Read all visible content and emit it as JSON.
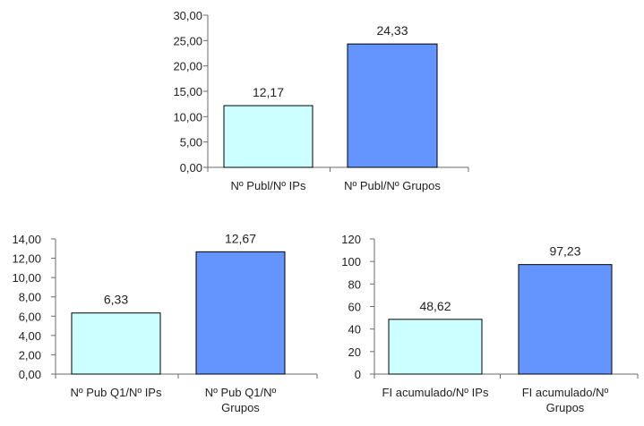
{
  "colors": {
    "series_a": "#ccffff",
    "series_b": "#6495ff"
  },
  "chart_data": [
    {
      "type": "bar",
      "categories": [
        [
          "Nº Publ/Nº IPs"
        ],
        [
          "Nº Publ/Nº Grupos"
        ]
      ],
      "values": [
        12.17,
        24.33
      ],
      "data_labels": [
        "12,17",
        "24,33"
      ],
      "ylim": [
        0,
        30
      ],
      "yticks": [
        0,
        5,
        10,
        15,
        20,
        25,
        30
      ],
      "ytick_labels": [
        "0,00",
        "5,00",
        "10,00",
        "15,00",
        "20,00",
        "25,00",
        "30,00"
      ],
      "grid": false,
      "legend": "none"
    },
    {
      "type": "bar",
      "categories": [
        [
          "Nº Pub Q1/Nº IPs"
        ],
        [
          "Nº Pub Q1/Nº",
          "Grupos"
        ]
      ],
      "values": [
        6.33,
        12.67
      ],
      "data_labels": [
        "6,33",
        "12,67"
      ],
      "ylim": [
        0,
        14
      ],
      "yticks": [
        0,
        2,
        4,
        6,
        8,
        10,
        12,
        14
      ],
      "ytick_labels": [
        "0,00",
        "2,00",
        "4,00",
        "6,00",
        "8,00",
        "10,00",
        "12,00",
        "14,00"
      ],
      "grid": false,
      "legend": "none"
    },
    {
      "type": "bar",
      "categories": [
        [
          "FI acumulado/Nº IPs"
        ],
        [
          "FI acumulado/Nº",
          "Grupos"
        ]
      ],
      "values": [
        48.62,
        97.23
      ],
      "data_labels": [
        "48,62",
        "97,23"
      ],
      "ylim": [
        0,
        120
      ],
      "yticks": [
        0,
        20,
        40,
        60,
        80,
        100,
        120
      ],
      "ytick_labels": [
        "0",
        "20",
        "40",
        "60",
        "80",
        "100",
        "120"
      ],
      "grid": false,
      "legend": "none"
    }
  ]
}
